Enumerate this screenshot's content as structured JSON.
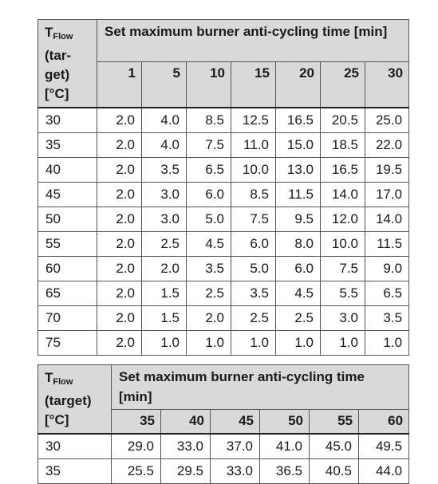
{
  "table1": {
    "header_col0_main": "T",
    "header_col0_sub": "Flow",
    "header_col0_rest": "(tar-\nget)\n[°C]",
    "header_title": "Set maximum burner anti-cycling time [min]",
    "columns": [
      "1",
      "5",
      "10",
      "15",
      "20",
      "25",
      "30"
    ],
    "rows": [
      {
        "t": "30",
        "v": [
          "2.0",
          "4.0",
          "8.5",
          "12.5",
          "16.5",
          "20.5",
          "25.0"
        ]
      },
      {
        "t": "35",
        "v": [
          "2.0",
          "4.0",
          "7.5",
          "11.0",
          "15.0",
          "18.5",
          "22.0"
        ]
      },
      {
        "t": "40",
        "v": [
          "2.0",
          "3.5",
          "6.5",
          "10.0",
          "13.0",
          "16.5",
          "19.5"
        ]
      },
      {
        "t": "45",
        "v": [
          "2.0",
          "3.0",
          "6.0",
          "8.5",
          "11.5",
          "14.0",
          "17.0"
        ]
      },
      {
        "t": "50",
        "v": [
          "2.0",
          "3.0",
          "5.0",
          "7.5",
          "9.5",
          "12.0",
          "14.0"
        ]
      },
      {
        "t": "55",
        "v": [
          "2.0",
          "2.5",
          "4.5",
          "6.0",
          "8.0",
          "10.0",
          "11.5"
        ]
      },
      {
        "t": "60",
        "v": [
          "2.0",
          "2.0",
          "3.5",
          "5.0",
          "6.0",
          "7.5",
          "9.0"
        ]
      },
      {
        "t": "65",
        "v": [
          "2.0",
          "1.5",
          "2.5",
          "3.5",
          "4.5",
          "5.5",
          "6.5"
        ]
      },
      {
        "t": "70",
        "v": [
          "2.0",
          "1.5",
          "2.0",
          "2.5",
          "2.5",
          "3.0",
          "3.5"
        ]
      },
      {
        "t": "75",
        "v": [
          "2.0",
          "1.0",
          "1.0",
          "1.0",
          "1.0",
          "1.0",
          "1.0"
        ]
      }
    ]
  },
  "table2": {
    "header_col0_main": "T",
    "header_col0_sub": "Flow",
    "header_col0_rest": "(target)\n[°C]",
    "header_title": "Set maximum burner anti-cycling time [min]",
    "columns": [
      "35",
      "40",
      "45",
      "50",
      "55",
      "60"
    ],
    "rows": [
      {
        "t": "30",
        "v": [
          "29.0",
          "33.0",
          "37.0",
          "41.0",
          "45.0",
          "49.5"
        ]
      },
      {
        "t": "35",
        "v": [
          "25.5",
          "29.5",
          "33.0",
          "36.5",
          "40.5",
          "44.0"
        ]
      }
    ]
  }
}
